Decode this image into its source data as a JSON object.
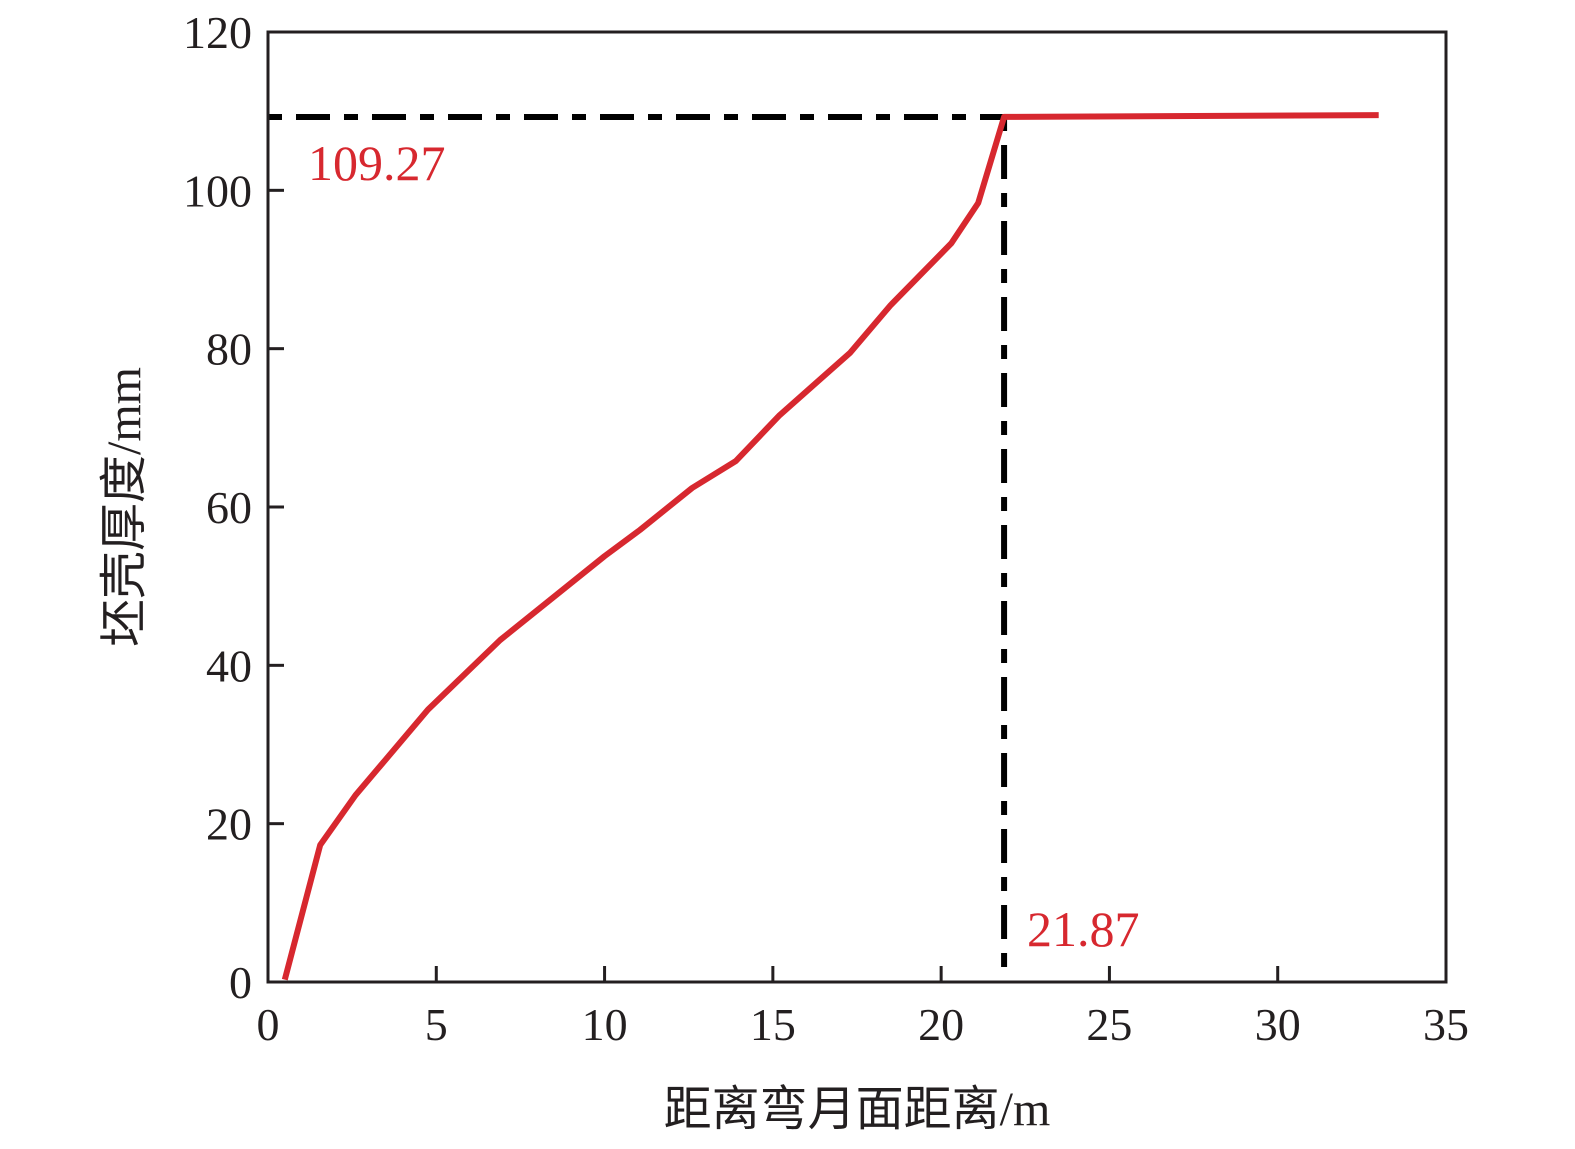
{
  "chart_data": {
    "type": "line",
    "xlabel": "距离弯月面距离/m",
    "ylabel": "坯壳厚度/mm",
    "xlim": [
      0,
      35
    ],
    "ylim": [
      0,
      120
    ],
    "xticks": [
      0,
      5,
      10,
      15,
      20,
      25,
      30,
      35
    ],
    "yticks": [
      0,
      20,
      40,
      60,
      80,
      100,
      120
    ],
    "grid": false,
    "series": [
      {
        "color": "#d7282f",
        "x": [
          0.5,
          1.55,
          2.6,
          4.75,
          6.9,
          10.0,
          11.05,
          12.6,
          13.9,
          15.2,
          17.3,
          18.5,
          20.3,
          21.1,
          21.87,
          33.0
        ],
        "y": [
          0.3,
          17.3,
          23.6,
          34.4,
          43.2,
          53.8,
          57.1,
          62.4,
          65.8,
          71.6,
          79.5,
          85.5,
          93.3,
          98.4,
          109.27,
          109.5
        ]
      }
    ],
    "reference_lines": {
      "color": "#000000",
      "style": "dash-dot",
      "x_value": 21.87,
      "y_value": 109.27
    },
    "annotations": [
      {
        "text": "109.27",
        "color": "#d7282f"
      },
      {
        "text": "21.87",
        "color": "#d7282f"
      }
    ]
  }
}
